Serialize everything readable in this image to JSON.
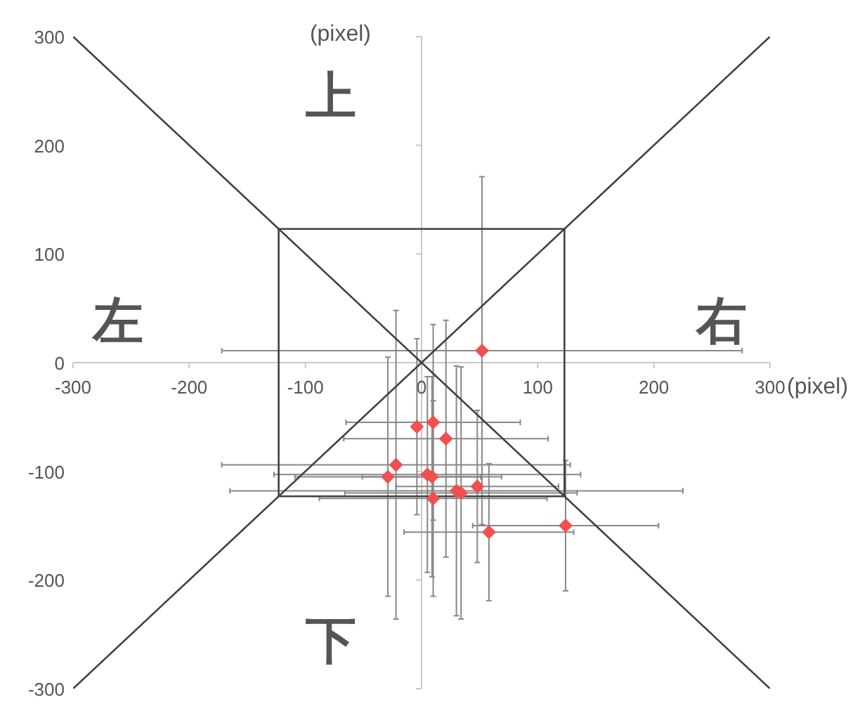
{
  "chart_data": {
    "type": "scatter",
    "xlabel": "(pixel)",
    "ylabel": "(pixel)",
    "xlim": [
      -300,
      300
    ],
    "ylim": [
      -300,
      300
    ],
    "xticks": [
      -300,
      -200,
      -100,
      0,
      100,
      200,
      300
    ],
    "yticks": [
      -300,
      -200,
      -100,
      0,
      100,
      200,
      300
    ],
    "annotations": [
      "上",
      "下",
      "左",
      "右"
    ],
    "series": [
      {
        "type": "line",
        "color": "#404040",
        "x": [
          -300,
          300
        ],
        "values": [
          300,
          -300
        ],
        "marker": "none"
      },
      {
        "type": "line",
        "color": "#404040",
        "x": [
          -300,
          300
        ],
        "values": [
          -300,
          300
        ],
        "marker": "none"
      },
      {
        "type": "line",
        "color": "#404040",
        "x": [
          -123,
          123
        ],
        "values": [
          123,
          123
        ],
        "marker": "none"
      },
      {
        "type": "line",
        "color": "#404040",
        "x": [
          123,
          123
        ],
        "values": [
          123,
          -123
        ],
        "marker": "none"
      },
      {
        "type": "line",
        "color": "#404040",
        "x": [
          123,
          -123
        ],
        "values": [
          -123,
          -123
        ],
        "marker": "none"
      },
      {
        "type": "line",
        "color": "#404040",
        "x": [
          -123,
          -123
        ],
        "values": [
          -123,
          123
        ],
        "marker": "none"
      },
      {
        "type": "scatter",
        "color": "#f05050",
        "marker": "diamond",
        "x": [
          52,
          -4,
          10,
          21,
          -22,
          -29,
          5,
          9,
          10,
          30,
          34,
          48,
          124,
          58
        ],
        "values": [
          11,
          -59,
          -55,
          -70,
          -94,
          -105,
          -103,
          -105,
          -125,
          -118,
          -120,
          -114,
          -150,
          -156
        ],
        "errors": [
          160,
          81,
          90,
          109,
          142,
          110,
          90,
          92,
          90,
          115,
          116,
          70,
          60,
          63
        ],
        "xerrors": [
          224,
          null,
          75,
          88,
          150,
          80,
          132,
          60,
          98,
          195,
          100,
          70,
          80,
          73
        ]
      }
    ]
  }
}
